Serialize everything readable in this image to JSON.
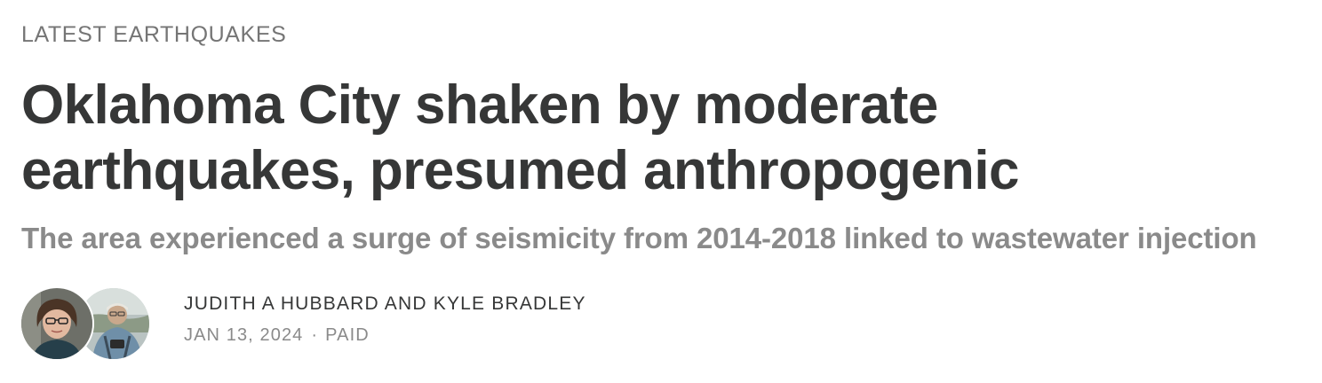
{
  "post": {
    "section": "LATEST EARTHQUAKES",
    "title": "Oklahoma City shaken by moderate earthquakes, presumed anthropogenic",
    "subtitle": "The area experienced a surge of seismicity from 2014-2018 linked to wastewater injection",
    "byline": {
      "authors": "JUDITH A HUBBARD AND KYLE BRADLEY",
      "date": "JAN 13, 2024",
      "separator": "·",
      "access": "PAID",
      "avatars": [
        "author-avatar-judith-hubbard",
        "author-avatar-kyle-bradley"
      ]
    }
  }
}
